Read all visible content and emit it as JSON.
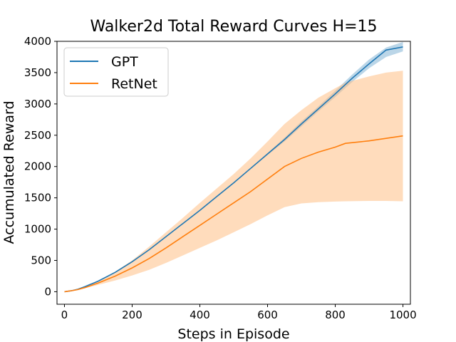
{
  "chart_data": {
    "type": "line",
    "title": "Walker2d Total Reward Curves H=15",
    "xlabel": "Steps in Episode",
    "ylabel": "Accumulated Reward",
    "xlim": [
      -22,
      1022
    ],
    "ylim": [
      -200,
      4000
    ],
    "xticks": [
      0,
      200,
      400,
      600,
      800,
      1000
    ],
    "yticks": [
      0,
      500,
      1000,
      1500,
      2000,
      2500,
      3000,
      3500,
      4000
    ],
    "grid": false,
    "legend_position": "top-left",
    "series": [
      {
        "name": "GPT",
        "color": "#1f77b4",
        "band_color": "#1f77b4",
        "x": [
          0,
          20,
          40,
          60,
          100,
          150,
          200,
          250,
          300,
          350,
          400,
          450,
          500,
          550,
          600,
          650,
          700,
          750,
          800,
          850,
          900,
          950,
          1000
        ],
        "y": [
          0,
          15,
          40,
          80,
          170,
          310,
          480,
          670,
          880,
          1090,
          1300,
          1520,
          1740,
          1970,
          2200,
          2430,
          2680,
          2920,
          3160,
          3410,
          3640,
          3860,
          3910
        ],
        "lower": [
          0,
          15,
          40,
          80,
          168,
          305,
          475,
          665,
          875,
          1085,
          1295,
          1515,
          1735,
          1960,
          2185,
          2400,
          2640,
          2880,
          3110,
          3350,
          3570,
          3750,
          3840
        ],
        "upper": [
          0,
          15,
          40,
          80,
          172,
          315,
          485,
          675,
          885,
          1095,
          1305,
          1525,
          1745,
          1980,
          2215,
          2460,
          2720,
          2960,
          3210,
          3470,
          3710,
          3900,
          3990
        ]
      },
      {
        "name": "RetNet",
        "color": "#ff7f0e",
        "band_color": "#ffc085",
        "x": [
          0,
          20,
          40,
          60,
          100,
          150,
          200,
          250,
          300,
          350,
          400,
          450,
          500,
          550,
          600,
          650,
          700,
          750,
          800,
          830,
          900,
          950,
          1000
        ],
        "y": [
          0,
          15,
          35,
          65,
          140,
          250,
          380,
          530,
          700,
          880,
          1060,
          1240,
          1420,
          1600,
          1800,
          2000,
          2130,
          2230,
          2310,
          2370,
          2410,
          2450,
          2490
        ],
        "lower": [
          0,
          15,
          30,
          55,
          110,
          180,
          260,
          350,
          460,
          580,
          700,
          820,
          950,
          1080,
          1220,
          1350,
          1410,
          1430,
          1440,
          1445,
          1450,
          1450,
          1445
        ],
        "upper": [
          0,
          15,
          40,
          75,
          170,
          320,
          500,
          720,
          950,
          1180,
          1420,
          1650,
          1880,
          2130,
          2400,
          2680,
          2900,
          3100,
          3250,
          3340,
          3440,
          3500,
          3530
        ]
      }
    ]
  }
}
